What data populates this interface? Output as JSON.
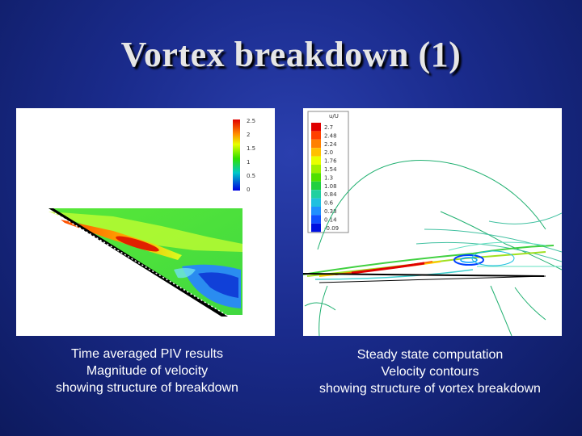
{
  "slide": {
    "title": "Vortex breakdown (1)"
  },
  "left_figure": {
    "colorbar_labels": [
      "2.5",
      "2",
      "1.5",
      "1",
      "0.5",
      "0"
    ],
    "caption_lines": [
      "Time averaged PIV results",
      "Magnitude of velocity",
      "showing structure of breakdown"
    ]
  },
  "right_figure": {
    "legend_labels": [
      "2.7",
      "2.48",
      "2.24",
      "2.0",
      "1.76",
      "1.54",
      "1.3",
      "1.08",
      "0.84",
      "0.6",
      "0.38",
      "0.14",
      "-0.09"
    ],
    "legend_header": "u/U",
    "caption_lines": [
      "Steady state computation",
      "Velocity contours",
      "showing structure of vortex breakdown"
    ]
  },
  "colors": {
    "background": "#1a2b8c",
    "title_text": "#e6e6e6",
    "caption_text": "#ffffff"
  }
}
